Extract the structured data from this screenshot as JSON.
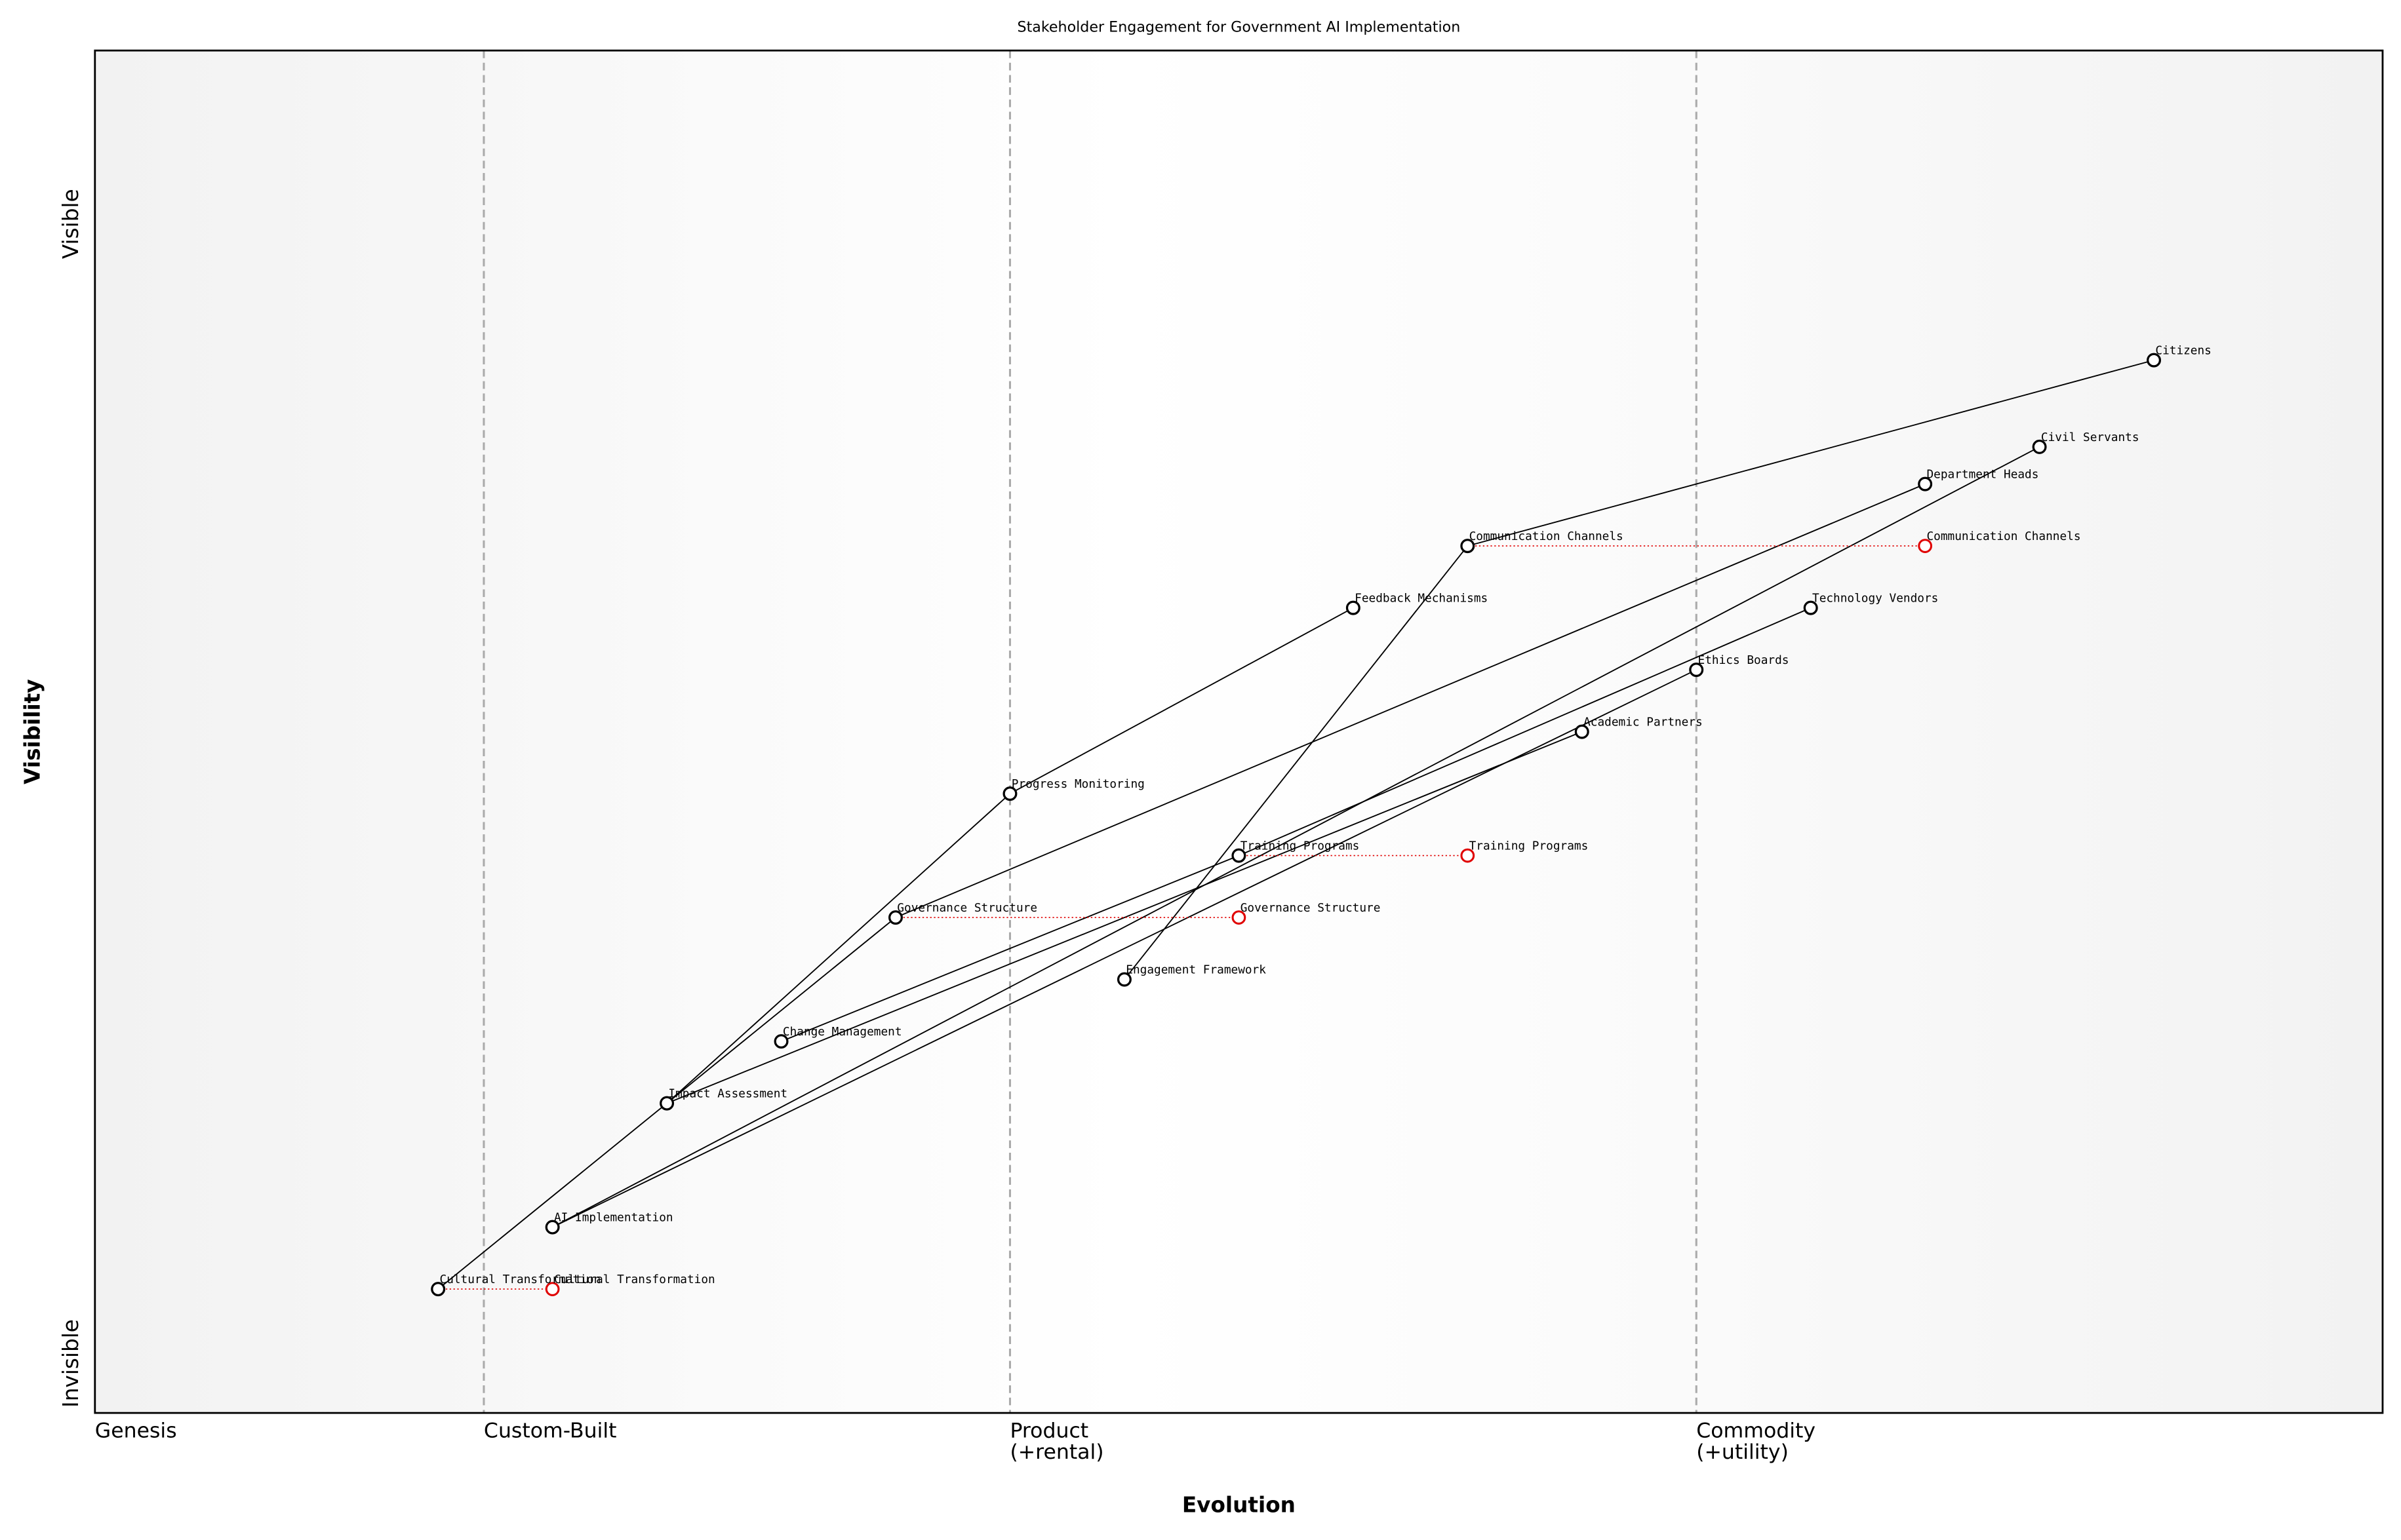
{
  "chart_data": {
    "type": "wardley",
    "title": "Stakeholder Engagement for Government AI Implementation",
    "x_label": "Evolution",
    "y_label": "Visibility",
    "xlim": [
      0,
      1
    ],
    "ylim": [
      0,
      1.1
    ],
    "xticks": [
      {
        "value": 0,
        "label": "Genesis"
      },
      {
        "value": 0.17,
        "label": "Custom-Built"
      },
      {
        "value": 0.4,
        "label": "Product\n(+rental)"
      },
      {
        "value": 0.7,
        "label": "Commodity\n(+utility)"
      }
    ],
    "yticks": [
      {
        "value": 0.04,
        "label": "Invisible"
      },
      {
        "value": 0.96,
        "label": "Visible"
      }
    ],
    "components": [
      {
        "name": "Citizens",
        "x": 0.9,
        "y": 0.85
      },
      {
        "name": "Civil Servants",
        "x": 0.85,
        "y": 0.78
      },
      {
        "name": "Department Heads",
        "x": 0.8,
        "y": 0.75
      },
      {
        "name": "Communication Channels",
        "x": 0.6,
        "y": 0.7
      },
      {
        "name": "Feedback Mechanisms",
        "x": 0.55,
        "y": 0.65
      },
      {
        "name": "Technology Vendors",
        "x": 0.75,
        "y": 0.65
      },
      {
        "name": "Ethics Boards",
        "x": 0.7,
        "y": 0.6
      },
      {
        "name": "Academic Partners",
        "x": 0.65,
        "y": 0.55
      },
      {
        "name": "Progress Monitoring",
        "x": 0.4,
        "y": 0.5
      },
      {
        "name": "Training Programs",
        "x": 0.5,
        "y": 0.45
      },
      {
        "name": "Governance Structure",
        "x": 0.35,
        "y": 0.4
      },
      {
        "name": "Engagement Framework",
        "x": 0.45,
        "y": 0.35
      },
      {
        "name": "Change Management",
        "x": 0.3,
        "y": 0.3
      },
      {
        "name": "Impact Assessment",
        "x": 0.25,
        "y": 0.25
      },
      {
        "name": "AI Implementation",
        "x": 0.2,
        "y": 0.15
      },
      {
        "name": "Cultural Transformation",
        "x": 0.15,
        "y": 0.1
      }
    ],
    "links": [
      [
        "Citizens",
        "Communication Channels"
      ],
      [
        "Civil Servants",
        "AI Implementation"
      ],
      [
        "Department Heads",
        "Governance Structure"
      ],
      [
        "Communication Channels",
        "Engagement Framework"
      ],
      [
        "Feedback Mechanisms",
        "Progress Monitoring"
      ],
      [
        "Progress Monitoring",
        "Impact Assessment"
      ],
      [
        "Impact Assessment",
        "Cultural Transformation"
      ],
      [
        "Governance Structure",
        "Impact Assessment"
      ],
      [
        "Technology Vendors",
        "Training Programs"
      ],
      [
        "Training Programs",
        "Change Management"
      ],
      [
        "Academic Partners",
        "Impact Assessment"
      ],
      [
        "Ethics Boards",
        "AI Implementation"
      ]
    ],
    "evolutions": [
      {
        "name": "Communication Channels",
        "x": 0.8
      },
      {
        "name": "Training Programs",
        "x": 0.6
      },
      {
        "name": "Governance Structure",
        "x": 0.5
      },
      {
        "name": "Cultural Transformation",
        "x": 0.2
      }
    ],
    "stage_lines": true,
    "color": "#000000",
    "evolution_color": "#e00000"
  }
}
